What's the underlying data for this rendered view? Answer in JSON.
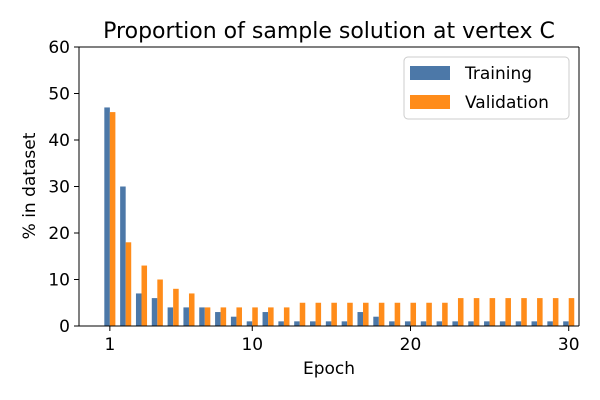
{
  "chart_data": {
    "type": "bar",
    "title": "Proportion of sample solution at vertex C",
    "xlabel": "Epoch",
    "ylabel": "% in dataset",
    "x": [
      1,
      2,
      3,
      4,
      5,
      6,
      7,
      8,
      9,
      10,
      11,
      12,
      13,
      14,
      15,
      16,
      17,
      18,
      19,
      20,
      21,
      22,
      23,
      24,
      25,
      26,
      27,
      28,
      29,
      30
    ],
    "xticks": [
      1,
      10,
      20,
      30
    ],
    "xtick_labels": [
      "1",
      "10",
      "20",
      "30"
    ],
    "ylim": [
      0,
      60
    ],
    "yticks": [
      0,
      10,
      20,
      30,
      40,
      50,
      60
    ],
    "ytick_labels": [
      "0",
      "10",
      "20",
      "30",
      "40",
      "50",
      "60"
    ],
    "grid": false,
    "legend_position": "top-right",
    "series": [
      {
        "name": "Training",
        "color": "#4c78a8",
        "values": [
          47,
          30,
          7,
          6,
          4,
          4,
          4,
          3,
          2,
          1,
          3,
          1,
          1,
          1,
          1,
          1,
          3,
          2,
          1,
          1,
          1,
          1,
          1,
          1,
          1,
          1,
          1,
          1,
          1,
          1
        ]
      },
      {
        "name": "Validation",
        "color": "#ff8c1a",
        "values": [
          46,
          18,
          13,
          10,
          8,
          7,
          4,
          4,
          4,
          4,
          4,
          4,
          5,
          5,
          5,
          5,
          5,
          5,
          5,
          5,
          5,
          5,
          6,
          6,
          6,
          6,
          6,
          6,
          6,
          6
        ]
      }
    ]
  }
}
